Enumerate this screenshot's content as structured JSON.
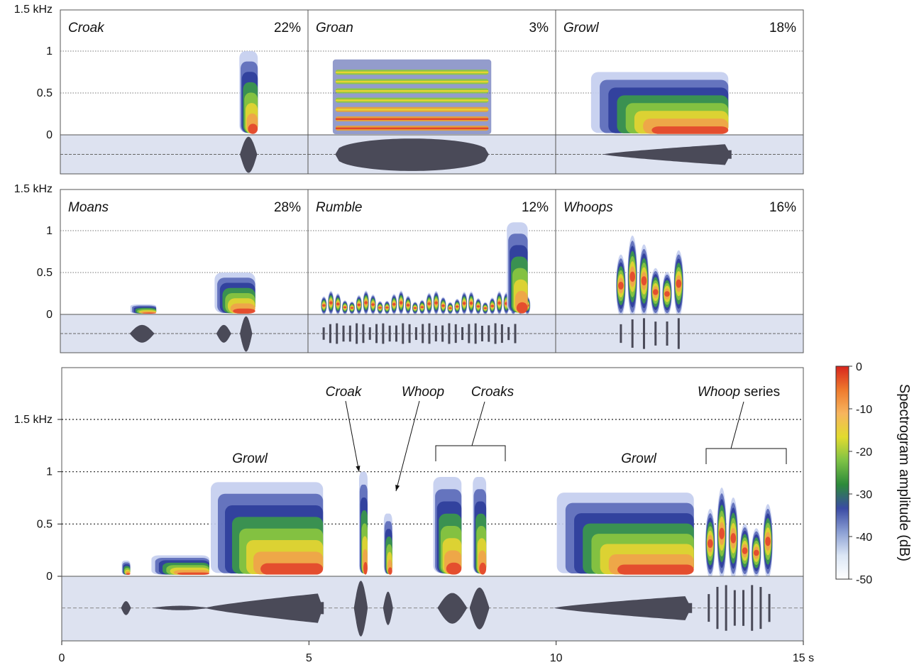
{
  "chart_data": [
    {
      "type": "spectrogram-grid",
      "y_axis": {
        "ticks": [
          "0",
          "0.5",
          "1",
          "1.5 kHz"
        ],
        "tick_values_khz": [
          0,
          0.5,
          1,
          1.5
        ]
      },
      "panels": [
        {
          "name": "Croak",
          "percent": "22%",
          "blobs": [
            {
              "t0": 0.72,
              "t1": 0.8,
              "f0": 0.0,
              "f1": 1.0,
              "peak": 0.5
            }
          ],
          "env": [
            {
              "t": 0.76,
              "w": 0.035,
              "a": 1.0
            }
          ]
        },
        {
          "name": "Groan",
          "percent": "3%",
          "blobs": [
            {
              "t0": 0.1,
              "t1": 0.74,
              "f0": 0.0,
              "f1": 0.9,
              "peak": 0.15,
              "harmonics": 7
            }
          ],
          "env": [
            {
              "t": 0.42,
              "w": 0.31,
              "a": 0.9,
              "flat": true
            }
          ]
        },
        {
          "name": "Growl",
          "percent": "18%",
          "blobs": [
            {
              "t0": 0.14,
              "t1": 0.7,
              "f0": 0.0,
              "f1": 0.75,
              "peak": 0.25
            }
          ],
          "env": [
            {
              "t": 0.45,
              "w": 0.26,
              "a": 0.6,
              "ramp": true
            }
          ]
        },
        {
          "name": "Moans",
          "percent": "28%",
          "blobs": [
            {
              "t0": 0.28,
              "t1": 0.39,
              "f0": 0.0,
              "f1": 0.12,
              "peak": 0.08
            },
            {
              "t0": 0.62,
              "t1": 0.79,
              "f0": 0.0,
              "f1": 0.5,
              "peak": 0.1
            }
          ],
          "env": [
            {
              "t": 0.33,
              "w": 0.05,
              "a": 0.5
            },
            {
              "t": 0.66,
              "w": 0.03,
              "a": 0.5
            },
            {
              "t": 0.75,
              "w": 0.025,
              "a": 1.0
            }
          ]
        },
        {
          "name": "Rumble",
          "percent": "12%",
          "blobs": [
            {
              "t0": 0.05,
              "t1": 0.9,
              "f0": 0.0,
              "f1": 0.3,
              "peak": 0.05,
              "pulses": 30
            },
            {
              "t0": 0.8,
              "t1": 0.89,
              "f0": 0.0,
              "f1": 1.1,
              "peak": 0.1
            }
          ],
          "env": [
            {
              "t": 0.45,
              "w": 0.4,
              "a": 0.6,
              "pulses": 30
            }
          ]
        },
        {
          "name": "Whoops",
          "percent": "16%",
          "blobs": [
            {
              "t0": 0.24,
              "t1": 0.52,
              "f0": 0.0,
              "f1": 1.0,
              "peak": 0.3,
              "pulses": 6
            }
          ],
          "env": [
            {
              "t": 0.38,
              "w": 0.14,
              "a": 0.9,
              "pulses": 6
            }
          ]
        }
      ]
    },
    {
      "type": "spectrogram",
      "x_axis": {
        "ticks": [
          "0",
          "5",
          "10",
          "15 s"
        ],
        "tick_values_s": [
          0,
          5,
          10,
          15
        ],
        "range_s": [
          0,
          15
        ]
      },
      "y_axis": {
        "ticks": [
          "0",
          "0.5",
          "1",
          "1.5 kHz"
        ],
        "tick_values_khz": [
          0,
          0.5,
          1,
          1.5
        ]
      },
      "events": [
        {
          "t0": 1.2,
          "t1": 1.4,
          "f1": 0.15
        },
        {
          "t0": 1.8,
          "t1": 3.0,
          "f1": 0.2
        },
        {
          "t0": 3.0,
          "t1": 5.3,
          "f1": 0.9
        },
        {
          "t0": 6.0,
          "t1": 6.2,
          "f1": 1.0
        },
        {
          "t0": 6.5,
          "t1": 6.7,
          "f1": 0.6
        },
        {
          "t0": 7.5,
          "t1": 8.1,
          "f1": 0.95
        },
        {
          "t0": 8.3,
          "t1": 8.6,
          "f1": 0.95
        },
        {
          "t0": 10.0,
          "t1": 12.8,
          "f1": 0.8
        },
        {
          "t0": 13.0,
          "t1": 14.4,
          "f1": 0.9
        }
      ],
      "annotations": [
        {
          "text": "Growl",
          "italic": true
        },
        {
          "text": "Croak",
          "italic": true
        },
        {
          "text": "Whoop",
          "italic": true
        },
        {
          "text": "Croaks",
          "italic": true
        },
        {
          "text": "Growl",
          "italic": true
        },
        {
          "text": "Whoop",
          "italic": true,
          "suffix": " series"
        }
      ]
    }
  ],
  "colorbar": {
    "label": "Spectrogram amplitude (dB)",
    "ticks": [
      "0",
      "-10",
      "-20",
      "-30",
      "-40",
      "-50"
    ],
    "tick_values": [
      0,
      -10,
      -20,
      -30,
      -40,
      -50
    ],
    "colors": [
      "#ffffff",
      "#dbe6f5",
      "#8b9fd4",
      "#3a4ba3",
      "#2c8a3a",
      "#7dc245",
      "#e2db2f",
      "#f7b55e",
      "#ee7a2d",
      "#d8251d"
    ]
  },
  "palette": {
    "waveform": "#4a4a58",
    "waveform_bg": "#dde2f0",
    "frame": "#555555"
  }
}
